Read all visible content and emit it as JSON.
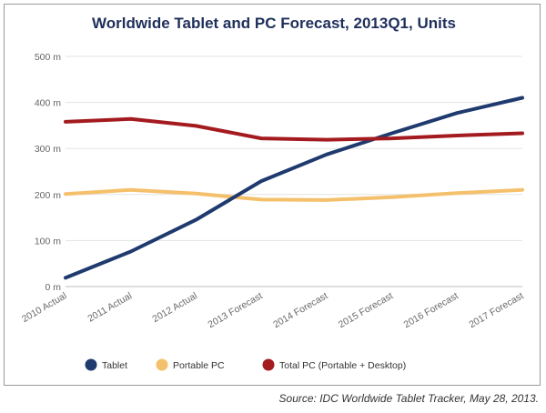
{
  "chart_data": {
    "type": "line",
    "title": "Worldwide Tablet and PC Forecast, 2013Q1, Units",
    "xlabel": "",
    "ylabel": "",
    "ylim": [
      0,
      500
    ],
    "yticks": [
      {
        "value": 0,
        "label": "0 m"
      },
      {
        "value": 100,
        "label": "100 m"
      },
      {
        "value": 200,
        "label": "200 m"
      },
      {
        "value": 300,
        "label": "300 m"
      },
      {
        "value": 400,
        "label": "400 m"
      },
      {
        "value": 500,
        "label": "500 m"
      }
    ],
    "grid": true,
    "legend_position": "bottom",
    "categories": [
      "2010 Actual",
      "2011 Actual",
      "2012 Actual",
      "2013 Forecast",
      "2014 Forecast",
      "2015 Forecast",
      "2016 Forecast",
      "2017 Forecast"
    ],
    "series": [
      {
        "name": "Tablet",
        "color": "#1f3a6e",
        "values": [
          19,
          76,
          145,
          229,
          287,
          333,
          377,
          410
        ]
      },
      {
        "name": "Portable PC",
        "color": "#f5c06b",
        "values": [
          201,
          210,
          202,
          189,
          188,
          194,
          203,
          210
        ]
      },
      {
        "name": "Total PC (Portable + Desktop)",
        "color": "#a31a1f",
        "values": [
          358,
          364,
          349,
          322,
          319,
          322,
          328,
          333
        ]
      }
    ],
    "source": "Source: IDC Worldwide Tablet Tracker, May 28, 2013."
  }
}
